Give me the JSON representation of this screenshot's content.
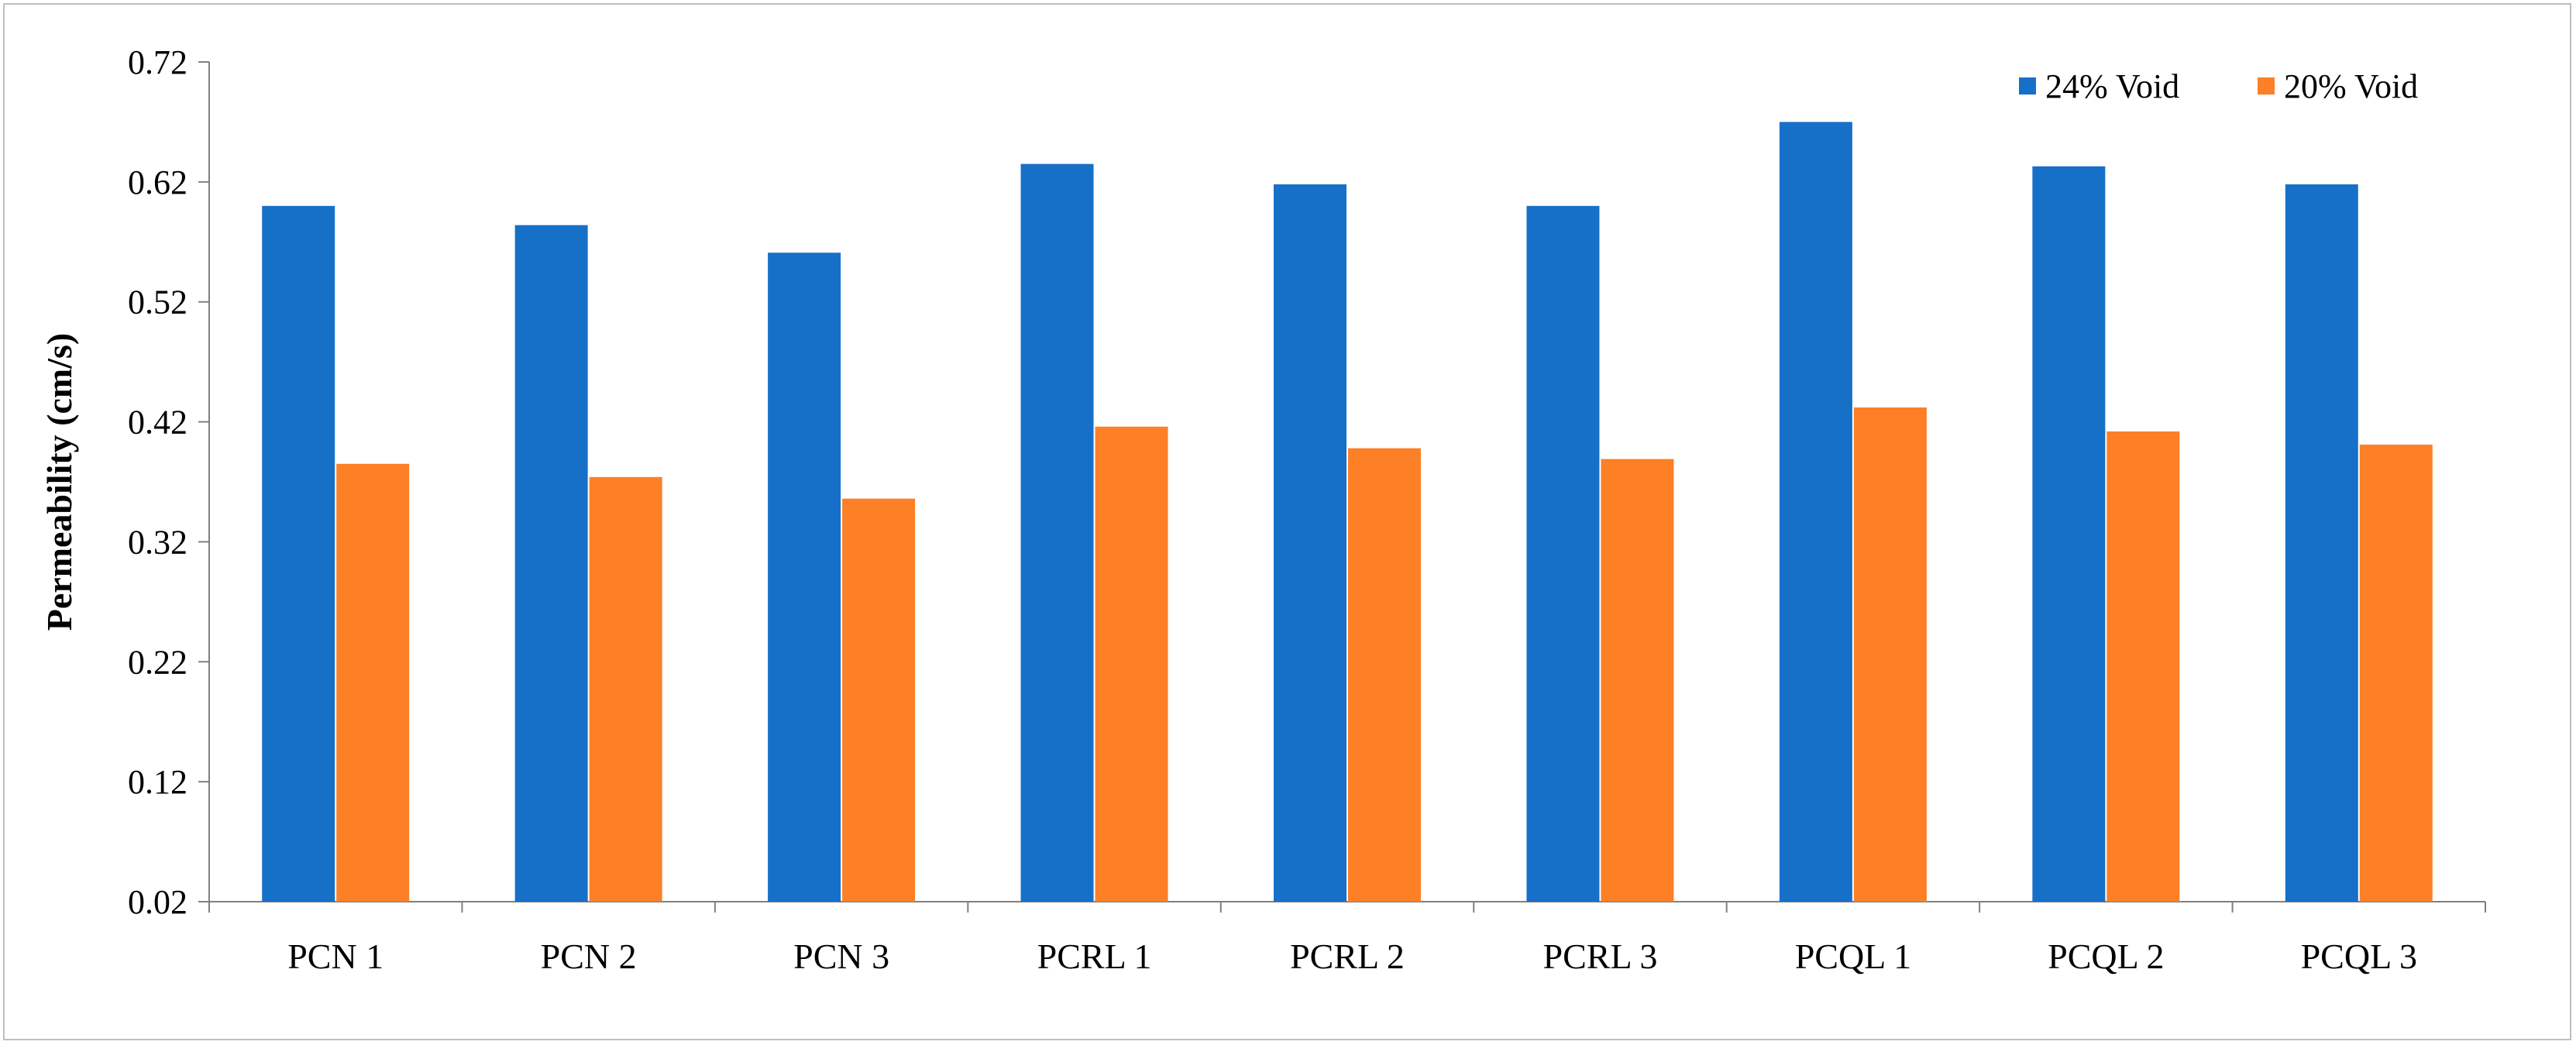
{
  "chart_data": {
    "type": "bar",
    "ylabel": "Permeability (cm/s)",
    "xlabel": "",
    "title": "",
    "categories": [
      "PCN 1",
      "PCN 2",
      "PCN 3",
      "PCRL 1",
      "PCRL 2",
      "PCRL 3",
      "PCQL 1",
      "PCQL 2",
      "PCQL 3"
    ],
    "series": [
      {
        "name": "24% Void",
        "color": "#1670C8",
        "values": [
          0.6,
          0.584,
          0.561,
          0.635,
          0.618,
          0.6,
          0.67,
          0.633,
          0.618
        ]
      },
      {
        "name": "20% Void",
        "color": "#FD7F26",
        "values": [
          0.385,
          0.374,
          0.356,
          0.416,
          0.398,
          0.389,
          0.432,
          0.412,
          0.401
        ]
      }
    ],
    "ylim": [
      0.02,
      0.72
    ],
    "yticks": [
      "0.02",
      "0.12",
      "0.22",
      "0.32",
      "0.42",
      "0.52",
      "0.62",
      "0.72"
    ],
    "grid": false,
    "legend": "top-right"
  }
}
